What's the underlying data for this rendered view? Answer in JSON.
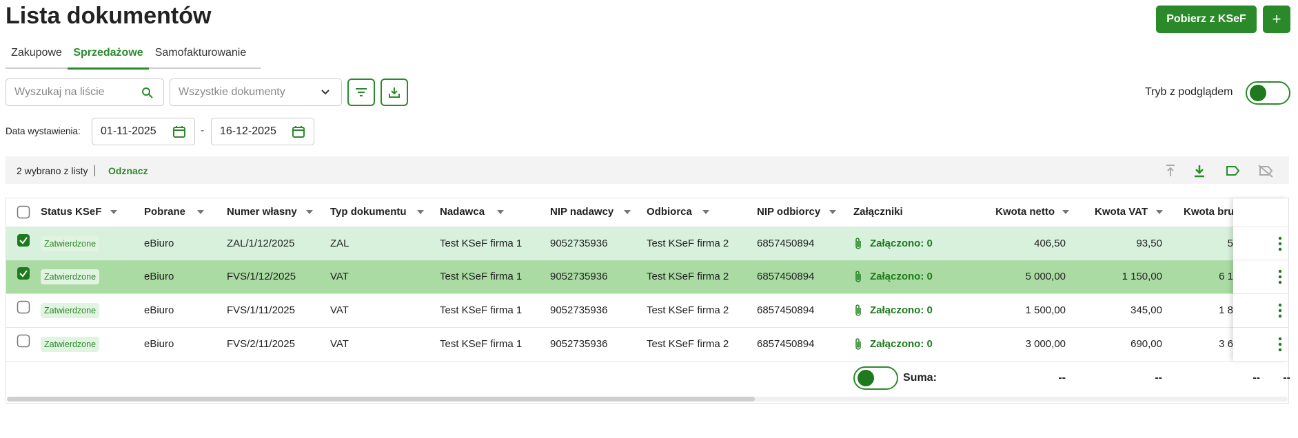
{
  "header": {
    "title": "Lista dokumentów",
    "primary_button": "Pobierz z KSeF",
    "add_button": "+"
  },
  "tabs": {
    "items": [
      "Zakupowe",
      "Sprzedażowe",
      "Samofakturowanie"
    ],
    "active": 1
  },
  "filters": {
    "search_placeholder": "Wyszukaj na liście",
    "document_type": "Wszystkie dokumenty",
    "preview_mode": "Tryb z podglądem",
    "date_label": "Data wystawienia:",
    "date_from": "01-11-2025",
    "date_separator": "-",
    "date_to": "16-12-2025"
  },
  "selection": {
    "count_text": "2 wybrano z listy",
    "deselect": "Odznacz"
  },
  "table": {
    "columns": [
      "Status KSeF",
      "Pobrane",
      "Numer własny",
      "Typ dokumentu",
      "Nadawca",
      "NIP nadawcy",
      "Odbiorca",
      "NIP odbiorcy",
      "Załączniki",
      "Kwota netto",
      "Kwota VAT",
      "Kwota bru"
    ],
    "rows": [
      {
        "checked": true,
        "cells": [
          "Zatwierdzone",
          "eBiuro",
          "ZAL/1/12/2025",
          "ZAL",
          "Test KSeF firma 1",
          "9052735936",
          "Test KSeF firma 2",
          "6857450894",
          "Załączono: 0",
          "406,50",
          "93,50",
          "5"
        ]
      },
      {
        "checked": true,
        "cells": [
          "Zatwierdzone",
          "eBiuro",
          "FVS/1/12/2025",
          "VAT",
          "Test KSeF firma 1",
          "9052735936",
          "Test KSeF firma 2",
          "6857450894",
          "Załączono: 0",
          "5 000,00",
          "1 150,00",
          "6 1"
        ]
      },
      {
        "checked": false,
        "cells": [
          "Zatwierdzone",
          "eBiuro",
          "FVS/1/11/2025",
          "VAT",
          "Test KSeF firma 1",
          "9052735936",
          "Test KSeF firma 2",
          "6857450894",
          "Załączono: 0",
          "1 500,00",
          "345,00",
          "1 8"
        ]
      },
      {
        "checked": false,
        "cells": [
          "Zatwierdzone",
          "eBiuro",
          "FVS/2/11/2025",
          "VAT",
          "Test KSeF firma 1",
          "9052735936",
          "Test KSeF firma 2",
          "6857450894",
          "Załączono: 0",
          "3 000,00",
          "690,00",
          "3 6"
        ]
      }
    ],
    "footer": {
      "label": "Suma:",
      "values": [
        "--",
        "--",
        "--",
        "--"
      ]
    }
  }
}
